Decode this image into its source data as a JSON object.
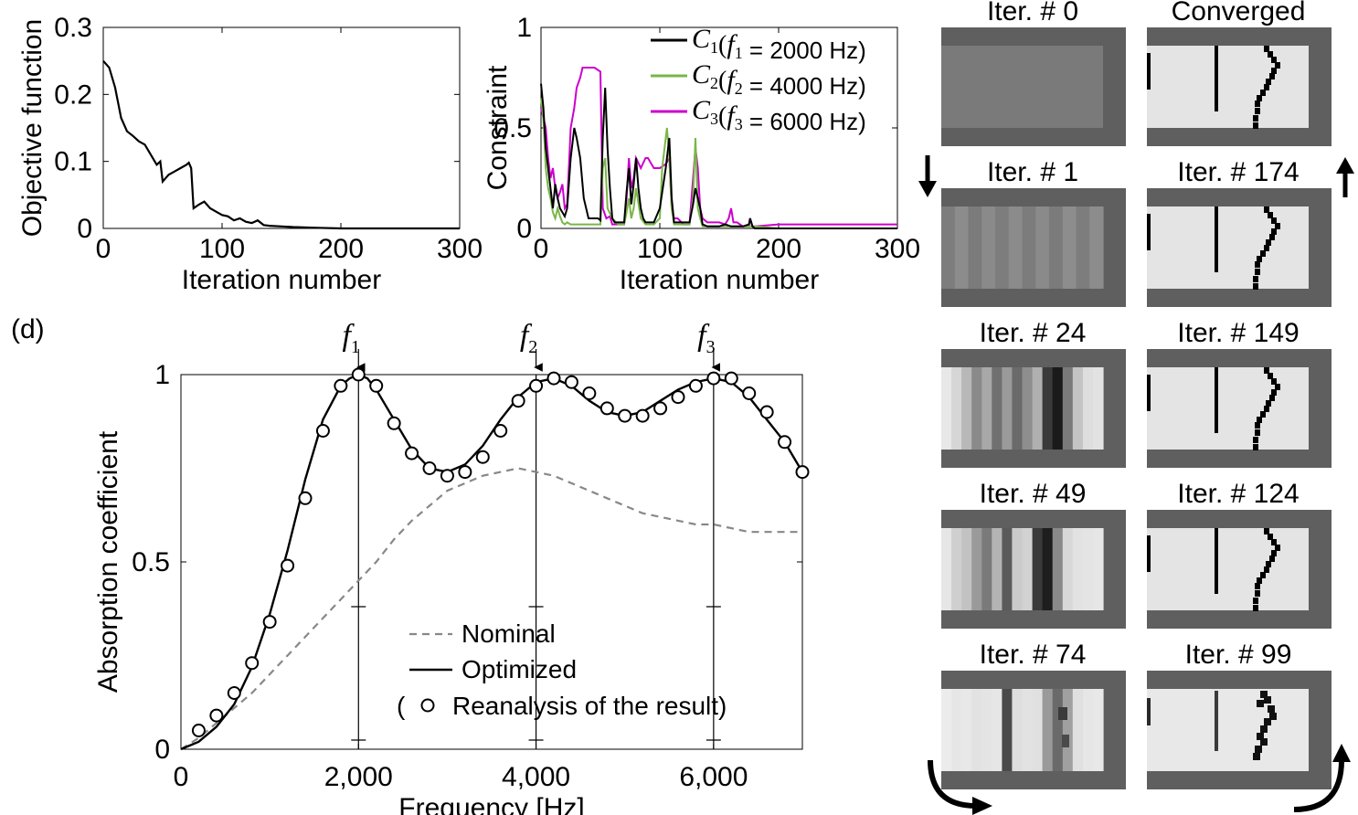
{
  "chart_data": [
    {
      "type": "line",
      "panel": "a",
      "ylabel": "Objective function",
      "xlabel": "Iteration number",
      "xlim": [
        0,
        300
      ],
      "ylim": [
        0,
        0.3
      ],
      "x_ticks": [
        "0",
        "100",
        "200",
        "300"
      ],
      "y_ticks": [
        "0",
        "0.1",
        "0.2",
        "0.3"
      ],
      "series": [
        {
          "x": [
            0,
            5,
            10,
            15,
            20,
            25,
            30,
            35,
            40,
            45,
            48,
            50,
            55,
            60,
            65,
            70,
            72,
            74,
            76,
            80,
            85,
            90,
            95,
            100,
            105,
            110,
            115,
            120,
            125,
            130,
            135,
            140,
            150,
            160,
            180,
            200,
            250,
            300
          ],
          "y": [
            0.25,
            0.24,
            0.21,
            0.165,
            0.145,
            0.138,
            0.13,
            0.125,
            0.11,
            0.095,
            0.1,
            0.07,
            0.08,
            0.085,
            0.09,
            0.095,
            0.098,
            0.09,
            0.03,
            0.035,
            0.04,
            0.03,
            0.025,
            0.02,
            0.018,
            0.012,
            0.015,
            0.01,
            0.008,
            0.012,
            0.005,
            0.004,
            0.003,
            0.002,
            0.001,
            0.0,
            0.0,
            0.0
          ],
          "color": "#000000"
        }
      ]
    },
    {
      "type": "line",
      "panel": "b",
      "ylabel": "Constraint",
      "xlabel": "Iteration number",
      "xlim": [
        0,
        300
      ],
      "ylim": [
        0,
        1
      ],
      "x_ticks": [
        "0",
        "100",
        "200",
        "300"
      ],
      "y_ticks": [
        "0",
        "0.5",
        "1"
      ],
      "legend_position": "top-right",
      "series": [
        {
          "legend": {
            "c": "C",
            "ci": "1",
            "f": "f",
            "fi": "1",
            "val": " = 2000 Hz)"
          },
          "color": "#000000",
          "x": [
            0,
            2,
            4,
            6,
            8,
            10,
            12,
            14,
            16,
            18,
            20,
            22,
            25,
            28,
            30,
            33,
            36,
            40,
            44,
            48,
            50,
            52,
            54,
            56,
            58,
            60,
            62,
            65,
            70,
            72,
            74,
            76,
            78,
            80,
            82,
            84,
            86,
            88,
            90,
            95,
            100,
            105,
            108,
            110,
            112,
            115,
            120,
            125,
            128,
            130,
            132,
            134,
            136,
            140,
            150,
            155,
            160,
            165,
            170,
            175,
            176,
            178,
            180,
            200,
            250,
            300
          ],
          "y": [
            0.72,
            0.6,
            0.4,
            0.3,
            0.2,
            0.1,
            0.22,
            0.15,
            0.1,
            0.08,
            0.06,
            0.1,
            0.35,
            0.5,
            0.45,
            0.35,
            0.15,
            0.05,
            0.05,
            0.05,
            0.04,
            0.45,
            0.7,
            0.4,
            0.2,
            0.05,
            0.03,
            0.03,
            0.03,
            0.18,
            0.3,
            0.12,
            0.22,
            0.35,
            0.2,
            0.1,
            0.05,
            0.03,
            0.03,
            0.03,
            0.1,
            0.3,
            0.45,
            0.15,
            0.03,
            0.03,
            0.03,
            0.03,
            0.12,
            0.2,
            0.15,
            0.1,
            0.02,
            0.01,
            0.01,
            0.02,
            0.01,
            0.01,
            0.01,
            0.02,
            0.05,
            0.01,
            0.0,
            0.0,
            0.0,
            0.0
          ]
        },
        {
          "legend": {
            "c": "C",
            "ci": "2",
            "f": "f",
            "fi": "2",
            "val": " = 4000 Hz)"
          },
          "color": "#7ab648",
          "x": [
            0,
            2,
            4,
            6,
            8,
            10,
            12,
            14,
            16,
            18,
            20,
            22,
            25,
            28,
            30,
            35,
            40,
            45,
            50,
            52,
            54,
            56,
            60,
            65,
            70,
            72,
            74,
            76,
            78,
            80,
            84,
            88,
            90,
            95,
            100,
            102,
            104,
            106,
            108,
            110,
            112,
            115,
            120,
            125,
            128,
            130,
            132,
            134,
            136,
            140,
            150,
            160,
            180,
            200,
            250,
            300
          ],
          "y": [
            0.65,
            0.55,
            0.3,
            0.2,
            0.15,
            0.08,
            0.05,
            0.1,
            0.06,
            0.03,
            0.02,
            0.03,
            0.02,
            0.02,
            0.02,
            0.02,
            0.02,
            0.02,
            0.02,
            0.3,
            0.35,
            0.1,
            0.05,
            0.02,
            0.02,
            0.08,
            0.15,
            0.05,
            0.1,
            0.2,
            0.05,
            0.02,
            0.02,
            0.02,
            0.05,
            0.3,
            0.4,
            0.5,
            0.35,
            0.1,
            0.02,
            0.02,
            0.02,
            0.02,
            0.15,
            0.45,
            0.1,
            0.05,
            0.01,
            0.01,
            0.01,
            0.01,
            0.01,
            0.0,
            0.0,
            0.0
          ]
        },
        {
          "legend": {
            "c": "C",
            "ci": "3",
            "f": "f",
            "fi": "3",
            "val": " = 6000 Hz)"
          },
          "color": "#cc00cc",
          "x": [
            0,
            2,
            4,
            6,
            8,
            10,
            12,
            14,
            16,
            18,
            20,
            22,
            25,
            28,
            30,
            33,
            35,
            40,
            45,
            50,
            52,
            55,
            58,
            60,
            65,
            70,
            72,
            74,
            76,
            78,
            80,
            84,
            88,
            90,
            95,
            100,
            105,
            108,
            110,
            112,
            115,
            120,
            125,
            128,
            130,
            132,
            134,
            136,
            140,
            150,
            155,
            158,
            160,
            162,
            165,
            170,
            175,
            176,
            178,
            180,
            200,
            250,
            300
          ],
          "y": [
            0.6,
            0.55,
            0.5,
            0.35,
            0.25,
            0.3,
            0.2,
            0.15,
            0.18,
            0.22,
            0.1,
            0.12,
            0.5,
            0.6,
            0.7,
            0.75,
            0.8,
            0.8,
            0.8,
            0.78,
            0.1,
            0.05,
            0.06,
            0.02,
            0.02,
            0.02,
            0.15,
            0.35,
            0.2,
            0.25,
            0.35,
            0.3,
            0.35,
            0.35,
            0.3,
            0.3,
            0.32,
            0.35,
            0.1,
            0.05,
            0.05,
            0.02,
            0.02,
            0.25,
            0.4,
            0.3,
            0.1,
            0.05,
            0.03,
            0.03,
            0.02,
            0.05,
            0.1,
            0.03,
            0.03,
            0.01,
            0.01,
            0.05,
            0.01,
            0.01,
            0.02,
            0.02,
            0.02
          ]
        }
      ]
    },
    {
      "type": "line",
      "panel": "d",
      "label": "(d)",
      "ylabel": "Absorption coefficient",
      "xlabel": "Frequency [Hz]",
      "xlim": [
        0,
        7000
      ],
      "ylim": [
        0,
        1
      ],
      "x_ticks": [
        "0",
        "2,000",
        "4,000",
        "6,000"
      ],
      "y_ticks": [
        "0",
        "0.5",
        "1"
      ],
      "markers": [
        {
          "f": "f",
          "i": "1",
          "x": 2000
        },
        {
          "f": "f",
          "i": "2",
          "x": 4000
        },
        {
          "f": "f",
          "i": "3",
          "x": 6000
        }
      ],
      "legend": {
        "nominal": "Nominal",
        "optimized": "Optimized",
        "reanalysis": "Reanalysis of the result)",
        "paren": "("
      },
      "series": [
        {
          "name": "Nominal",
          "style": "dashed",
          "color": "#888888",
          "x": [
            0,
            200,
            400,
            600,
            800,
            1000,
            1200,
            1400,
            1600,
            1800,
            2000,
            2200,
            2400,
            2600,
            2800,
            3000,
            3200,
            3400,
            3600,
            3800,
            4000,
            4200,
            4400,
            4600,
            4800,
            5000,
            5200,
            5400,
            5600,
            5800,
            6000,
            6200,
            6400,
            6600,
            6800,
            7000
          ],
          "y": [
            0.0,
            0.03,
            0.07,
            0.11,
            0.15,
            0.2,
            0.25,
            0.3,
            0.35,
            0.4,
            0.45,
            0.5,
            0.56,
            0.61,
            0.65,
            0.69,
            0.71,
            0.73,
            0.74,
            0.75,
            0.74,
            0.73,
            0.71,
            0.69,
            0.67,
            0.65,
            0.63,
            0.62,
            0.61,
            0.6,
            0.6,
            0.59,
            0.58,
            0.58,
            0.58,
            0.58
          ]
        },
        {
          "name": "Optimized",
          "style": "solid",
          "color": "#000000",
          "x": [
            0,
            200,
            400,
            600,
            800,
            1000,
            1200,
            1400,
            1600,
            1800,
            1900,
            2000,
            2100,
            2200,
            2400,
            2600,
            2800,
            3000,
            3200,
            3400,
            3600,
            3800,
            4000,
            4200,
            4400,
            4600,
            4800,
            5000,
            5200,
            5400,
            5600,
            5800,
            6000,
            6200,
            6400,
            6600,
            6800,
            7000
          ],
          "y": [
            0.0,
            0.02,
            0.06,
            0.12,
            0.22,
            0.36,
            0.53,
            0.72,
            0.88,
            0.97,
            0.99,
            1.0,
            0.99,
            0.96,
            0.88,
            0.8,
            0.75,
            0.74,
            0.76,
            0.81,
            0.88,
            0.94,
            0.98,
            0.99,
            0.97,
            0.93,
            0.9,
            0.89,
            0.9,
            0.93,
            0.96,
            0.98,
            0.99,
            0.98,
            0.94,
            0.88,
            0.82,
            0.74
          ]
        },
        {
          "name": "Reanalysis of the result",
          "style": "circles",
          "color": "#000000",
          "x": [
            200,
            400,
            600,
            800,
            1000,
            1200,
            1400,
            1600,
            1800,
            2000,
            2200,
            2400,
            2600,
            2800,
            3000,
            3200,
            3400,
            3600,
            3800,
            4000,
            4200,
            4400,
            4600,
            4800,
            5000,
            5200,
            5400,
            5600,
            5800,
            6000,
            6200,
            6400,
            6600,
            6800,
            7000
          ],
          "y": [
            0.05,
            0.09,
            0.15,
            0.23,
            0.34,
            0.49,
            0.67,
            0.85,
            0.97,
            1.0,
            0.97,
            0.87,
            0.79,
            0.75,
            0.73,
            0.74,
            0.78,
            0.85,
            0.93,
            0.97,
            0.99,
            0.98,
            0.95,
            0.91,
            0.89,
            0.89,
            0.91,
            0.94,
            0.97,
            0.99,
            0.99,
            0.95,
            0.9,
            0.82,
            0.74
          ]
        }
      ]
    }
  ],
  "design_panels": {
    "left": [
      {
        "title": "Iter. # 0",
        "kind": "uniform"
      },
      {
        "title": "Iter. # 1",
        "kind": "stripes_soft"
      },
      {
        "title": "Iter. # 24",
        "kind": "stripes_24"
      },
      {
        "title": "Iter. # 49",
        "kind": "stripes_49"
      },
      {
        "title": "Iter. # 74",
        "kind": "iter_74"
      }
    ],
    "right": [
      {
        "title": "Converged",
        "kind": "converged"
      },
      {
        "title": "Iter. # 174",
        "kind": "converged"
      },
      {
        "title": "Iter. # 149",
        "kind": "converged"
      },
      {
        "title": "Iter. # 124",
        "kind": "converged"
      },
      {
        "title": "Iter. # 99",
        "kind": "iter_99"
      }
    ]
  }
}
